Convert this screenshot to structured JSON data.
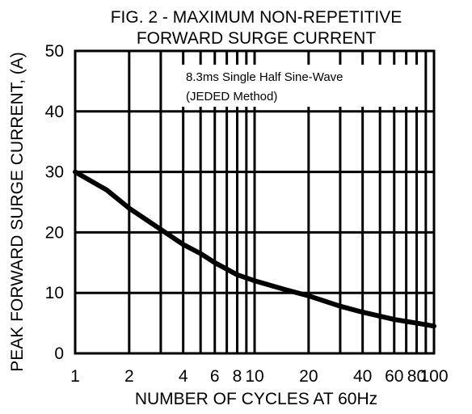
{
  "chart_data": {
    "type": "line",
    "title": [
      "FIG. 2 - MAXIMUM NON-REPETITIVE",
      "FORWARD SURGE CURRENT"
    ],
    "xlabel": "NUMBER OF CYCLES AT 60Hz",
    "ylabel": "PEAK FORWARD SURGE CURRENT, (A)",
    "xscale": "log",
    "xlim": [
      1,
      100
    ],
    "ylim": [
      0,
      50
    ],
    "x_ticks": [
      1,
      2,
      4,
      6,
      8,
      10,
      20,
      40,
      60,
      80,
      100
    ],
    "x_tick_labels": [
      "1",
      "2",
      "4",
      "6",
      "8",
      "10",
      "20",
      "40",
      "60",
      "80",
      "100"
    ],
    "y_ticks": [
      0,
      10,
      20,
      30,
      40,
      50
    ],
    "y_tick_labels": [
      "0",
      "10",
      "20",
      "30",
      "40",
      "50"
    ],
    "x_gridlines": [
      1,
      2,
      3,
      4,
      5,
      6,
      7,
      8,
      9,
      10,
      20,
      30,
      40,
      50,
      60,
      70,
      80,
      90,
      100
    ],
    "y_gridlines": [
      0,
      10,
      20,
      30,
      40,
      50
    ],
    "grid": true,
    "annotation": [
      "8.3ms Single Half Sine-Wave",
      "(JEDED Method)"
    ],
    "series": [
      {
        "x": [
          1,
          1.5,
          2,
          3,
          4,
          5,
          6,
          8,
          10,
          15,
          20,
          30,
          40,
          60,
          80,
          100
        ],
        "y": [
          30,
          27,
          24,
          20.5,
          18,
          16.5,
          15,
          13,
          12,
          10.5,
          9.5,
          7.8,
          6.8,
          5.6,
          5,
          4.5
        ]
      }
    ]
  }
}
